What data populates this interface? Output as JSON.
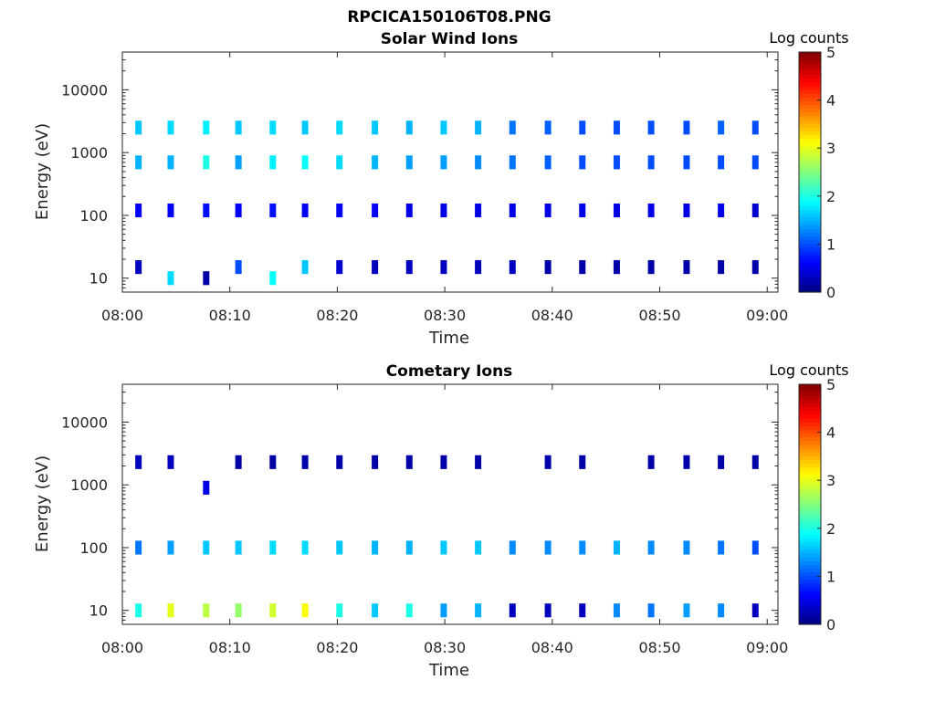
{
  "figure": {
    "filename": "RPCICA150106T08.PNG"
  },
  "chart_data": [
    {
      "type": "heatmap",
      "title": "Solar Wind Ions",
      "xlabel": "Time",
      "ylabel": "Energy (eV)",
      "x_ticks": [
        "08:00",
        "08:10",
        "08:20",
        "08:30",
        "08:40",
        "08:50",
        "09:00"
      ],
      "x_range": [
        "08:00",
        "09:01"
      ],
      "y_scale": "log",
      "y_ticks": [
        10,
        100,
        1000,
        10000
      ],
      "y_tick_labels": [
        "10",
        "100",
        "1000",
        "10000"
      ],
      "y_range": [
        6,
        40000
      ],
      "colorbar": {
        "label": "Log counts",
        "ticks": [
          0,
          1,
          2,
          3,
          4,
          5
        ],
        "range": [
          0,
          5
        ],
        "colormap": "jet"
      },
      "sweep_times_min": [
        1.5,
        4.5,
        7.8,
        10.8,
        14.0,
        17.0,
        20.2,
        23.5,
        26.7,
        29.9,
        33.1,
        36.3,
        39.6,
        42.8,
        46.0,
        49.2,
        52.5,
        55.7,
        58.9
      ],
      "cells": [
        {
          "t": 1.5,
          "e": 2500,
          "v": 1.6
        },
        {
          "t": 1.5,
          "e": 700,
          "v": 1.5
        },
        {
          "t": 1.5,
          "e": 120,
          "v": 0.6
        },
        {
          "t": 1.5,
          "e": 15,
          "v": 0.3
        },
        {
          "t": 4.5,
          "e": 2500,
          "v": 1.7
        },
        {
          "t": 4.5,
          "e": 700,
          "v": 1.5
        },
        {
          "t": 4.5,
          "e": 120,
          "v": 0.6
        },
        {
          "t": 4.5,
          "e": 10,
          "v": 1.7
        },
        {
          "t": 7.8,
          "e": 2500,
          "v": 1.8
        },
        {
          "t": 7.8,
          "e": 700,
          "v": 2.0
        },
        {
          "t": 7.8,
          "e": 120,
          "v": 0.7
        },
        {
          "t": 7.8,
          "e": 10,
          "v": 0.2
        },
        {
          "t": 10.8,
          "e": 2500,
          "v": 1.6
        },
        {
          "t": 10.8,
          "e": 700,
          "v": 1.4
        },
        {
          "t": 10.8,
          "e": 120,
          "v": 0.6
        },
        {
          "t": 10.8,
          "e": 15,
          "v": 1.0
        },
        {
          "t": 14.0,
          "e": 2500,
          "v": 1.7
        },
        {
          "t": 14.0,
          "e": 700,
          "v": 1.8
        },
        {
          "t": 14.0,
          "e": 120,
          "v": 0.7
        },
        {
          "t": 14.0,
          "e": 10,
          "v": 1.9
        },
        {
          "t": 17.0,
          "e": 2500,
          "v": 1.6
        },
        {
          "t": 17.0,
          "e": 700,
          "v": 1.9
        },
        {
          "t": 17.0,
          "e": 120,
          "v": 0.6
        },
        {
          "t": 17.0,
          "e": 15,
          "v": 1.6
        },
        {
          "t": 20.2,
          "e": 2500,
          "v": 1.7
        },
        {
          "t": 20.2,
          "e": 700,
          "v": 1.7
        },
        {
          "t": 20.2,
          "e": 120,
          "v": 0.6
        },
        {
          "t": 20.2,
          "e": 15,
          "v": 0.4
        },
        {
          "t": 23.5,
          "e": 2500,
          "v": 1.6
        },
        {
          "t": 23.5,
          "e": 700,
          "v": 1.5
        },
        {
          "t": 23.5,
          "e": 120,
          "v": 0.6
        },
        {
          "t": 23.5,
          "e": 15,
          "v": 0.3
        },
        {
          "t": 26.7,
          "e": 2500,
          "v": 1.5
        },
        {
          "t": 26.7,
          "e": 700,
          "v": 1.4
        },
        {
          "t": 26.7,
          "e": 120,
          "v": 0.5
        },
        {
          "t": 26.7,
          "e": 15,
          "v": 0.3
        },
        {
          "t": 29.9,
          "e": 2500,
          "v": 1.6
        },
        {
          "t": 29.9,
          "e": 700,
          "v": 1.4
        },
        {
          "t": 29.9,
          "e": 120,
          "v": 0.5
        },
        {
          "t": 29.9,
          "e": 15,
          "v": 0.3
        },
        {
          "t": 33.1,
          "e": 2500,
          "v": 1.5
        },
        {
          "t": 33.1,
          "e": 700,
          "v": 1.3
        },
        {
          "t": 33.1,
          "e": 120,
          "v": 0.5
        },
        {
          "t": 33.1,
          "e": 15,
          "v": 0.3
        },
        {
          "t": 36.3,
          "e": 2500,
          "v": 1.2
        },
        {
          "t": 36.3,
          "e": 700,
          "v": 1.2
        },
        {
          "t": 36.3,
          "e": 120,
          "v": 0.5
        },
        {
          "t": 36.3,
          "e": 15,
          "v": 0.3
        },
        {
          "t": 39.6,
          "e": 2500,
          "v": 1.1
        },
        {
          "t": 39.6,
          "e": 700,
          "v": 1.1
        },
        {
          "t": 39.6,
          "e": 120,
          "v": 0.5
        },
        {
          "t": 39.6,
          "e": 15,
          "v": 0.2
        },
        {
          "t": 42.8,
          "e": 2500,
          "v": 1.0
        },
        {
          "t": 42.8,
          "e": 700,
          "v": 1.0
        },
        {
          "t": 42.8,
          "e": 120,
          "v": 0.5
        },
        {
          "t": 42.8,
          "e": 15,
          "v": 0.2
        },
        {
          "t": 46.0,
          "e": 2500,
          "v": 1.0
        },
        {
          "t": 46.0,
          "e": 700,
          "v": 1.0
        },
        {
          "t": 46.0,
          "e": 120,
          "v": 0.5
        },
        {
          "t": 46.0,
          "e": 15,
          "v": 0.2
        },
        {
          "t": 49.2,
          "e": 2500,
          "v": 1.0
        },
        {
          "t": 49.2,
          "e": 700,
          "v": 1.0
        },
        {
          "t": 49.2,
          "e": 120,
          "v": 0.5
        },
        {
          "t": 49.2,
          "e": 15,
          "v": 0.2
        },
        {
          "t": 52.5,
          "e": 2500,
          "v": 1.0
        },
        {
          "t": 52.5,
          "e": 700,
          "v": 1.0
        },
        {
          "t": 52.5,
          "e": 120,
          "v": 0.5
        },
        {
          "t": 52.5,
          "e": 15,
          "v": 0.2
        },
        {
          "t": 55.7,
          "e": 2500,
          "v": 1.1
        },
        {
          "t": 55.7,
          "e": 700,
          "v": 1.0
        },
        {
          "t": 55.7,
          "e": 120,
          "v": 0.5
        },
        {
          "t": 55.7,
          "e": 15,
          "v": 0.2
        },
        {
          "t": 58.9,
          "e": 2500,
          "v": 1.0
        },
        {
          "t": 58.9,
          "e": 700,
          "v": 1.0
        },
        {
          "t": 58.9,
          "e": 120,
          "v": 0.4
        },
        {
          "t": 58.9,
          "e": 15,
          "v": 0.2
        }
      ],
      "grid": false
    },
    {
      "type": "heatmap",
      "title": "Cometary Ions",
      "xlabel": "Time",
      "ylabel": "Energy (eV)",
      "x_ticks": [
        "08:00",
        "08:10",
        "08:20",
        "08:30",
        "08:40",
        "08:50",
        "09:00"
      ],
      "x_range": [
        "08:00",
        "09:01"
      ],
      "y_scale": "log",
      "y_ticks": [
        10,
        100,
        1000,
        10000
      ],
      "y_tick_labels": [
        "10",
        "100",
        "1000",
        "10000"
      ],
      "y_range": [
        6,
        40000
      ],
      "colorbar": {
        "label": "Log counts",
        "ticks": [
          0,
          1,
          2,
          3,
          4,
          5
        ],
        "range": [
          0,
          5
        ],
        "colormap": "jet"
      },
      "sweep_times_min": [
        1.5,
        4.5,
        7.8,
        10.8,
        14.0,
        17.0,
        20.2,
        23.5,
        26.7,
        29.9,
        33.1,
        36.3,
        39.6,
        42.8,
        46.0,
        49.2,
        52.5,
        55.7,
        58.9
      ],
      "cells": [
        {
          "t": 1.5,
          "e": 2300,
          "v": 0.3
        },
        {
          "t": 1.5,
          "e": 100,
          "v": 1.2
        },
        {
          "t": 1.5,
          "e": 10,
          "v": 2.0
        },
        {
          "t": 4.5,
          "e": 2300,
          "v": 0.3
        },
        {
          "t": 4.5,
          "e": 100,
          "v": 1.4
        },
        {
          "t": 4.5,
          "e": 10,
          "v": 3.0
        },
        {
          "t": 7.8,
          "e": 900,
          "v": 0.5
        },
        {
          "t": 7.8,
          "e": 100,
          "v": 1.6
        },
        {
          "t": 7.8,
          "e": 10,
          "v": 2.8
        },
        {
          "t": 10.8,
          "e": 2300,
          "v": 0.2
        },
        {
          "t": 10.8,
          "e": 100,
          "v": 1.6
        },
        {
          "t": 10.8,
          "e": 10,
          "v": 2.6
        },
        {
          "t": 14.0,
          "e": 2300,
          "v": 0.2
        },
        {
          "t": 14.0,
          "e": 100,
          "v": 1.7
        },
        {
          "t": 14.0,
          "e": 10,
          "v": 2.9
        },
        {
          "t": 17.0,
          "e": 2300,
          "v": 0.2
        },
        {
          "t": 17.0,
          "e": 100,
          "v": 1.7
        },
        {
          "t": 17.0,
          "e": 10,
          "v": 3.1
        },
        {
          "t": 20.2,
          "e": 2300,
          "v": 0.2
        },
        {
          "t": 20.2,
          "e": 100,
          "v": 1.6
        },
        {
          "t": 20.2,
          "e": 10,
          "v": 2.0
        },
        {
          "t": 23.5,
          "e": 2300,
          "v": 0.2
        },
        {
          "t": 23.5,
          "e": 100,
          "v": 1.5
        },
        {
          "t": 23.5,
          "e": 10,
          "v": 1.6
        },
        {
          "t": 26.7,
          "e": 2300,
          "v": 0.2
        },
        {
          "t": 26.7,
          "e": 100,
          "v": 1.5
        },
        {
          "t": 26.7,
          "e": 10,
          "v": 2.0
        },
        {
          "t": 29.9,
          "e": 2300,
          "v": 0.2
        },
        {
          "t": 29.9,
          "e": 100,
          "v": 1.6
        },
        {
          "t": 29.9,
          "e": 10,
          "v": 1.4
        },
        {
          "t": 33.1,
          "e": 2300,
          "v": 0.2
        },
        {
          "t": 33.1,
          "e": 100,
          "v": 1.6
        },
        {
          "t": 33.1,
          "e": 10,
          "v": 1.5
        },
        {
          "t": 36.3,
          "e": 100,
          "v": 1.3
        },
        {
          "t": 36.3,
          "e": 10,
          "v": 0.3
        },
        {
          "t": 39.6,
          "e": 2300,
          "v": 0.2
        },
        {
          "t": 39.6,
          "e": 100,
          "v": 1.3
        },
        {
          "t": 39.6,
          "e": 10,
          "v": 0.3
        },
        {
          "t": 42.8,
          "e": 2300,
          "v": 0.2
        },
        {
          "t": 42.8,
          "e": 100,
          "v": 1.3
        },
        {
          "t": 42.8,
          "e": 10,
          "v": 0.3
        },
        {
          "t": 46.0,
          "e": 100,
          "v": 1.5
        },
        {
          "t": 46.0,
          "e": 10,
          "v": 1.3
        },
        {
          "t": 49.2,
          "e": 2300,
          "v": 0.2
        },
        {
          "t": 49.2,
          "e": 100,
          "v": 1.3
        },
        {
          "t": 49.2,
          "e": 10,
          "v": 1.2
        },
        {
          "t": 52.5,
          "e": 2300,
          "v": 0.2
        },
        {
          "t": 52.5,
          "e": 100,
          "v": 1.3
        },
        {
          "t": 52.5,
          "e": 10,
          "v": 1.4
        },
        {
          "t": 55.7,
          "e": 2300,
          "v": 0.2
        },
        {
          "t": 55.7,
          "e": 100,
          "v": 1.2
        },
        {
          "t": 55.7,
          "e": 10,
          "v": 1.3
        },
        {
          "t": 58.9,
          "e": 2300,
          "v": 0.2
        },
        {
          "t": 58.9,
          "e": 100,
          "v": 1.0
        },
        {
          "t": 58.9,
          "e": 10,
          "v": 0.3
        }
      ],
      "grid": false
    }
  ]
}
